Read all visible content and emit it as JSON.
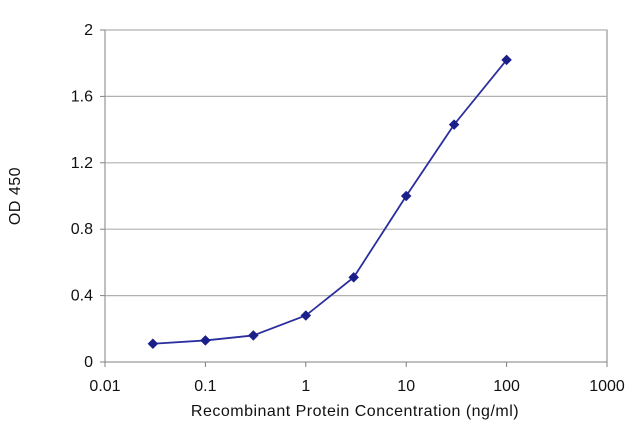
{
  "chart_data": {
    "type": "line",
    "xlabel": "Recombinant Protein Concentration (ng/ml)",
    "ylabel": "OD 450",
    "x_scale": "log",
    "xlim": [
      0.01,
      1000
    ],
    "ylim": [
      0,
      2
    ],
    "x_ticks": [
      0.01,
      0.1,
      1,
      10,
      100,
      1000
    ],
    "x_tick_labels": [
      "0.01",
      "0.1",
      "1",
      "10",
      "100",
      "1000"
    ],
    "y_ticks": [
      0,
      0.4,
      0.8,
      1.2,
      1.6,
      2
    ],
    "y_tick_labels": [
      "0",
      "0.4",
      "0.8",
      "1.2",
      "1.6",
      "2"
    ],
    "grid": "horizontal",
    "series": [
      {
        "x": [
          0.03,
          0.1,
          0.3,
          1,
          3,
          10,
          30,
          100
        ],
        "y": [
          0.11,
          0.13,
          0.16,
          0.28,
          0.51,
          1.0,
          1.43,
          1.82
        ],
        "color": "#2b2f9e",
        "marker": "diamond"
      }
    ],
    "colors": {
      "line": "#2b2f9e",
      "marker": "#1a1f8a",
      "grid": "#b0b0b0",
      "axis": "#808080"
    }
  }
}
